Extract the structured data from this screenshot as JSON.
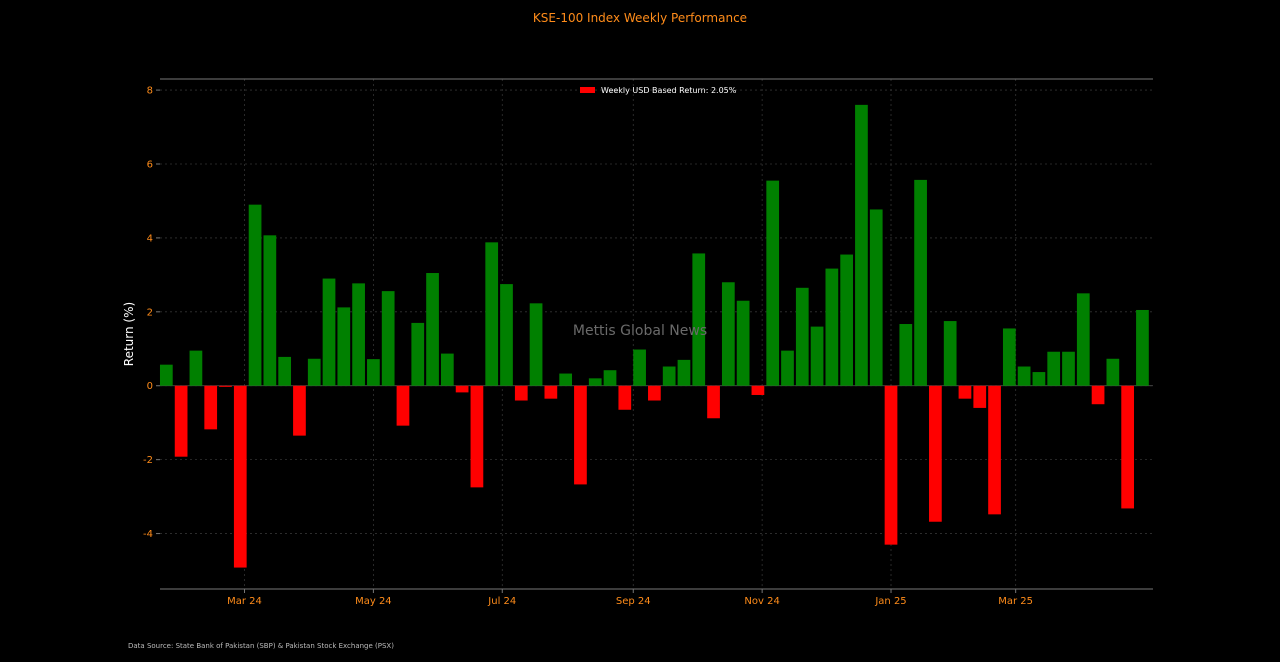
{
  "chart_data": {
    "type": "bar",
    "title": "KSE-100 Index Weekly Performance",
    "ylabel": "Return (%)",
    "xlabel": "",
    "ylim": [
      -5.5,
      8.3
    ],
    "yticks": [
      8,
      6,
      4,
      2,
      0,
      -2,
      -4
    ],
    "xlim": [
      "2024-01-21",
      "2025-05-05"
    ],
    "xticks": [
      {
        "date": "2024-03-01",
        "label": "Mar 24"
      },
      {
        "date": "2024-05-01",
        "label": "May 24"
      },
      {
        "date": "2024-07-01",
        "label": "Jul 24"
      },
      {
        "date": "2024-09-01",
        "label": "Sep 24"
      },
      {
        "date": "2024-11-01",
        "label": "Nov 24"
      },
      {
        "date": "2025-01-01",
        "label": "Jan 25"
      },
      {
        "date": "2025-03-01",
        "label": "Mar 25"
      }
    ],
    "grid": true,
    "legend": {
      "placement": "top-center",
      "label": "Weekly USD Based Return: 2.05%",
      "color": "#ff0000"
    },
    "positive_color": "#008000",
    "negative_color": "#ff0000",
    "dates": [
      "2024-01-24",
      "2024-01-31",
      "2024-02-07",
      "2024-02-14",
      "2024-02-21",
      "2024-02-28",
      "2024-03-06",
      "2024-03-13",
      "2024-03-20",
      "2024-03-27",
      "2024-04-03",
      "2024-04-10",
      "2024-04-17",
      "2024-04-24",
      "2024-05-01",
      "2024-05-08",
      "2024-05-15",
      "2024-05-22",
      "2024-05-29",
      "2024-06-05",
      "2024-06-12",
      "2024-06-19",
      "2024-06-26",
      "2024-07-03",
      "2024-07-10",
      "2024-07-17",
      "2024-07-24",
      "2024-07-31",
      "2024-08-07",
      "2024-08-14",
      "2024-08-21",
      "2024-08-28",
      "2024-09-04",
      "2024-09-11",
      "2024-09-18",
      "2024-09-25",
      "2024-10-02",
      "2024-10-09",
      "2024-10-16",
      "2024-10-23",
      "2024-10-30",
      "2024-11-06",
      "2024-11-13",
      "2024-11-20",
      "2024-11-27",
      "2024-12-04",
      "2024-12-11",
      "2024-12-18",
      "2024-12-25",
      "2025-01-01",
      "2025-01-08",
      "2025-01-15",
      "2025-01-22",
      "2025-01-29",
      "2025-02-05",
      "2025-02-12",
      "2025-02-19",
      "2025-02-26",
      "2025-03-05",
      "2025-03-12",
      "2025-03-19",
      "2025-03-26",
      "2025-04-02",
      "2025-04-09",
      "2025-04-16",
      "2025-04-23",
      "2025-04-30"
    ],
    "values": [
      0.57,
      -1.92,
      0.95,
      -1.18,
      -0.03,
      -4.92,
      4.9,
      4.07,
      0.78,
      -1.35,
      0.73,
      2.9,
      2.12,
      2.77,
      0.72,
      2.56,
      -1.08,
      1.7,
      3.05,
      0.87,
      -0.18,
      -2.75,
      3.88,
      2.75,
      -0.4,
      2.23,
      -0.35,
      0.33,
      -2.67,
      0.2,
      0.42,
      -0.65,
      0.98,
      -0.4,
      0.52,
      0.7,
      3.58,
      -0.88,
      2.8,
      2.3,
      -0.25,
      5.55,
      0.95,
      2.65,
      1.6,
      3.17,
      3.55,
      7.6,
      4.77,
      -4.3,
      1.67,
      5.57,
      -3.68,
      1.75,
      -0.35,
      -0.6,
      -3.48,
      1.55,
      0.52,
      0.37,
      0.92,
      0.92,
      2.5,
      -0.5,
      0.73,
      -3.32,
      2.05
    ]
  },
  "watermark": "Mettis Global News",
  "source_note": "Data Source: State Bank of Pakistan (SBP) & Pakistan Stock Exchange (PSX)",
  "colors": {
    "background": "#000000",
    "title": "#ff8c1a",
    "ticks": "#ff8c1a",
    "axis_label": "#ffffff",
    "grid": "#333333",
    "watermark": "#6a6a6a",
    "source": "#bbbbbb"
  }
}
